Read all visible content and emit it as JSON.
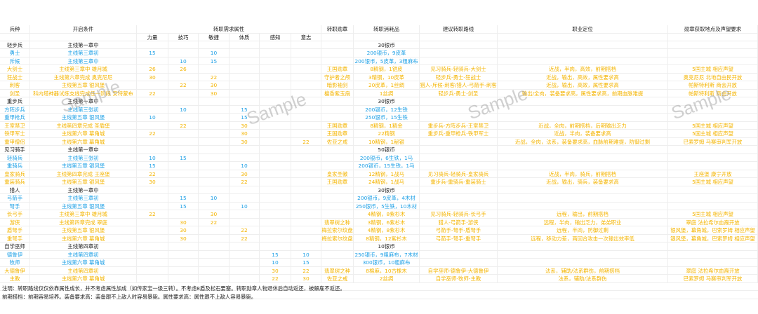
{
  "colors": {
    "base_unlock": "#1ea0e6",
    "advanced": "#f4b400",
    "text": "#222222"
  },
  "headers": {
    "unit": "兵种",
    "condition": "开启条件",
    "attrs_group": "转职需求属性",
    "attrs": [
      "力量",
      "技巧",
      "敏捷",
      "体质",
      "感知",
      "意志"
    ],
    "medal": "转职勋章",
    "cost": "转职消耗品",
    "route": "建议转职路线",
    "role": "职业定位",
    "location": "勋章获取地点及声望要求"
  },
  "rows": [
    {
      "type": "cat",
      "unit": "轻步兵",
      "condition": "主线第一章中",
      "attrs": [
        "",
        "",
        "",
        "",
        "",
        ""
      ],
      "medal": "",
      "cost": "30银币",
      "route": "",
      "role": "",
      "location": ""
    },
    {
      "type": "blue",
      "unit": "勇士",
      "condition": "主线第三章初",
      "attrs": [
        "15",
        "",
        "10",
        "",
        "",
        ""
      ],
      "medal": "",
      "cost": "200银币，9皮革",
      "route": "",
      "role": "",
      "location": ""
    },
    {
      "type": "blue",
      "unit": "斥候",
      "condition": "主线第三章中",
      "attrs": [
        "",
        "10",
        "15",
        "",
        "",
        ""
      ],
      "medal": "",
      "cost": "200银币，5皮革，3粗麻布",
      "route": "",
      "role": "",
      "location": ""
    },
    {
      "type": "orange",
      "unit": "大剑士",
      "condition": "主线第三章中 雄月城",
      "attrs": [
        "26",
        "26",
        "",
        "",
        "",
        ""
      ],
      "medal": "王国勋章",
      "cost": "8精钢，1铠皮",
      "route": "见习骑兵-轻骑兵-大剑士",
      "role": "近战，半肉，高效，前期搭档",
      "location": "5国主城 相应声望"
    },
    {
      "type": "orange",
      "unit": "狂战士",
      "condition": "主线第六章完成 奥克尼尼",
      "attrs": [
        "30",
        "",
        "22",
        "",
        "",
        ""
      ],
      "medal": "守护者之颅",
      "cost": "3精钢，10皮革",
      "route": "轻步兵-勇士-狂战士",
      "role": "近战，输出，高效，属性要求高",
      "location": "奥克尼尼 北地自由民开放"
    },
    {
      "type": "orange",
      "unit": "刺客",
      "condition": "主线第五章 银风堡",
      "attrs": [
        "",
        "22",
        "30",
        "",
        "",
        ""
      ],
      "medal": "暗影袖剑",
      "cost": "20皮革，1丝绸",
      "route": "猎人-斥候-刺客/猎人-弓箭手-刺客",
      "role": "近战，输出，高效，属性要求高",
      "location": "帕斯特利斯 商会开放"
    },
    {
      "type": "orange",
      "unit": "剑圣",
      "condition": "科内塔神器试炼支线完成任一阶段 安特蒙布",
      "attrs": [
        "22",
        "",
        "30",
        "",
        "",
        ""
      ],
      "medal": "檀香紫玉扇",
      "cost": "1丝绸",
      "route": "轻步兵-勇士-剑圣",
      "role": "输出/全肉，装备要求高，属性要求高，前期血脉难提",
      "location": "帕斯特利斯 商会开放"
    },
    {
      "type": "cat",
      "unit": "重步兵",
      "condition": "主线第一章中",
      "attrs": [
        "",
        "",
        "",
        "",
        "",
        ""
      ],
      "medal": "",
      "cost": "30银币",
      "route": "",
      "role": "",
      "location": ""
    },
    {
      "type": "blue",
      "unit": "方阵步兵",
      "condition": "主线第三张初",
      "attrs": [
        "",
        "10",
        "",
        "15",
        "",
        ""
      ],
      "medal": "",
      "cost": "200银币，12生铁",
      "route": "",
      "role": "",
      "location": ""
    },
    {
      "type": "blue",
      "unit": "重甲枪兵",
      "condition": "主线第五章 银风堡",
      "attrs": [
        "10",
        "",
        "",
        "15",
        "",
        ""
      ],
      "medal": "",
      "cost": "250银币，15生铁",
      "route": "",
      "role": "",
      "location": ""
    },
    {
      "type": "orange",
      "unit": "王室禁卫",
      "condition": "主线第四章完成 圣盾堡",
      "attrs": [
        "",
        "22",
        "",
        "30",
        "",
        ""
      ],
      "medal": "王国勋章",
      "cost": "8精钢，1精金",
      "route": "重步兵-方阵步兵-王室禁卫",
      "role": "近战，全肉，前期搭档，后期输出乏力",
      "location": "5国主城 相应声望"
    },
    {
      "type": "orange",
      "unit": "铁甲军士",
      "condition": "主线第六章 幕角城",
      "attrs": [
        "22",
        "",
        "",
        "30",
        "",
        ""
      ],
      "medal": "王国勋章",
      "cost": "22精钢",
      "route": "重步兵-重甲枪兵-铁甲军士",
      "role": "近战，半肉，装备要求高",
      "location": "5国主城 相应声望"
    },
    {
      "type": "orange",
      "unit": "重甲僧侣",
      "condition": "主线第六章 幕角城",
      "attrs": [
        "",
        "",
        "",
        "30",
        "",
        "22"
      ],
      "medal": "佐亚之戒",
      "cost": "10精钢，1秘银",
      "route": "",
      "role": "近战，全肉，法系，装备要求高，血脉前期难提，防御过剩",
      "location": "巴索罗姆 马赛审判军开放"
    },
    {
      "type": "cat",
      "unit": "见习骑手",
      "condition": "主线第一章中",
      "attrs": [
        "",
        "",
        "",
        "",
        "",
        ""
      ],
      "medal": "",
      "cost": "50银币",
      "route": "",
      "role": "",
      "location": ""
    },
    {
      "type": "blue",
      "unit": "轻骑兵",
      "condition": "主线第三张初",
      "attrs": [
        "10",
        "15",
        "",
        "",
        "",
        ""
      ],
      "medal": "",
      "cost": "200银币，6生铁，1马",
      "route": "",
      "role": "",
      "location": ""
    },
    {
      "type": "blue",
      "unit": "重骑兵",
      "condition": "主线第五章 银风堡",
      "attrs": [
        "15",
        "",
        "",
        "10",
        "",
        ""
      ],
      "medal": "",
      "cost": "200银币，15生铁，1马",
      "route": "",
      "role": "",
      "location": ""
    },
    {
      "type": "orange",
      "unit": "皇家骑兵",
      "condition": "主线第四章完成 王座堡",
      "attrs": [
        "22",
        "",
        "",
        "30",
        "",
        ""
      ],
      "medal": "皇家圣徽",
      "cost": "12精钢，1战马",
      "route": "见习骑兵-轻骑兵-皇家骑兵",
      "role": "近战，半肉，骑兵，前期搭档",
      "location": "王座堡 康宁开放"
    },
    {
      "type": "orange",
      "unit": "重装骑兵",
      "condition": "主线第五章 银风堡",
      "attrs": [
        "30",
        "",
        "",
        "22",
        "",
        ""
      ],
      "medal": "王国勋章",
      "cost": "24精钢，1战马",
      "route": "重步兵-重骑兵-重装骑士",
      "role": "近战，输出，骑兵，装备要求高",
      "location": "5国主城 相应声望"
    },
    {
      "type": "cat",
      "unit": "猎人",
      "condition": "主线第一章中",
      "attrs": [
        "",
        "",
        "",
        "",
        "",
        ""
      ],
      "medal": "",
      "cost": "30银币",
      "route": "",
      "role": "",
      "location": ""
    },
    {
      "type": "blue",
      "unit": "弓箭手",
      "condition": "主线第三章初",
      "attrs": [
        "",
        "15",
        "10",
        "",
        "",
        ""
      ],
      "medal": "",
      "cost": "200银币，9皮革，4木材",
      "route": "",
      "role": "",
      "location": ""
    },
    {
      "type": "blue",
      "unit": "弩手",
      "condition": "主线第五章 银风堡",
      "attrs": [
        "",
        "15",
        "",
        "10",
        "",
        ""
      ],
      "medal": "",
      "cost": "250银币，5生铁，10木材",
      "route": "",
      "role": "",
      "location": ""
    },
    {
      "type": "orange",
      "unit": "长弓手",
      "condition": "主线第三章中 雄月城",
      "attrs": [
        "22",
        "",
        "30",
        "",
        "",
        ""
      ],
      "medal": "",
      "cost": "4精钢，8紫杉木",
      "route": "见习骑兵-轻骑兵-长弓手",
      "role": "远程，输出，前期搭档",
      "location": "5国主城 相应声望"
    },
    {
      "type": "orange",
      "unit": "游侠",
      "condition": "主线第四章完成 翠庭",
      "attrs": [
        "",
        "30",
        "22",
        "",
        "",
        ""
      ],
      "medal": "翡翠树之种",
      "cost": "3精钢，6紫杉木",
      "route": "猎人-弓箭手-游侠",
      "role": "远程，半肉，输出乏力，弟弟职业",
      "location": "翠庭 法拉希尔血裔开放"
    },
    {
      "type": "orange",
      "unit": "盾弩手",
      "condition": "主线第五章 银风堡",
      "attrs": [
        "",
        "30",
        "",
        "22",
        "",
        ""
      ],
      "medal": "梅拉索尔纹盘",
      "cost": "4精钢，8紫杉木",
      "route": "弓箭手-弩手-盾弩手",
      "role": "远程，半肉，防御过剩",
      "location": "银风堡，幕角城，巴索罗姆 相应声望"
    },
    {
      "type": "orange",
      "unit": "重弩手",
      "condition": "主线第六章 幕角城",
      "attrs": [
        "",
        "30",
        "",
        "22",
        "",
        ""
      ],
      "medal": "梅拉索尔纹盘",
      "cost": "8精钢，12紫杉木",
      "route": "弓箭手-弩手-重弩手",
      "role": "远程，移动力差，两回合攻击一次输出效率低",
      "location": "银风堡，幕角城，巴索罗姆 相应声望"
    },
    {
      "type": "cat",
      "unit": "自学巫师",
      "condition": "主线第四章初",
      "attrs": [
        "",
        "",
        "",
        "",
        "",
        ""
      ],
      "medal": "",
      "cost": "10银币",
      "route": "",
      "role": "",
      "location": ""
    },
    {
      "type": "blue",
      "unit": "德鲁伊",
      "condition": "主线第四章初",
      "attrs": [
        "",
        "",
        "",
        "",
        "15",
        "10"
      ],
      "medal": "",
      "cost": "250银币，9粗麻布，7木材",
      "route": "",
      "role": "",
      "location": ""
    },
    {
      "type": "blue",
      "unit": "牧师",
      "condition": "主线第六章 幕角城",
      "attrs": [
        "",
        "",
        "",
        "",
        "10",
        "15"
      ],
      "medal": "",
      "cost": "300银币，10粗麻布",
      "route": "",
      "role": "",
      "location": ""
    },
    {
      "type": "orange",
      "unit": "大德鲁伊",
      "condition": "主线第四章初",
      "attrs": [
        "",
        "",
        "",
        "",
        "30",
        "22"
      ],
      "medal": "翡翠树之种",
      "cost": "8棉麻，10古橡木",
      "route": "自学巫师-德鲁伊-大德鲁伊",
      "role": "法系，辅助/法系群伤，前期搭档",
      "location": "翠庭 法拉希尔血裔开放"
    },
    {
      "type": "orange",
      "unit": "主教",
      "condition": "主线第六章 幕角城",
      "attrs": [
        "",
        "",
        "",
        "",
        "22",
        "30"
      ],
      "medal": "佐亚之戒",
      "cost": "2丝绸",
      "route": "自学巫师-牧师-主教",
      "role": "法系，辅助/法系群伤",
      "location": "巴索罗姆 马赛审判军开放"
    }
  ],
  "notes": [
    "注明：转职路线仅仅依靠属性成长，并不考虑属性加成（如传家宝一级三转）。不考虑8盾及松石要塞。转职勋章人物退休后自动返还，被解雇不返还。",
    "前期搭档：前期容易培养。装备要求高：装备跟不上敌人时容易暴毙。属性要求高：属性跟不上敌人容易暴毙。"
  ],
  "watermark": "Sample"
}
